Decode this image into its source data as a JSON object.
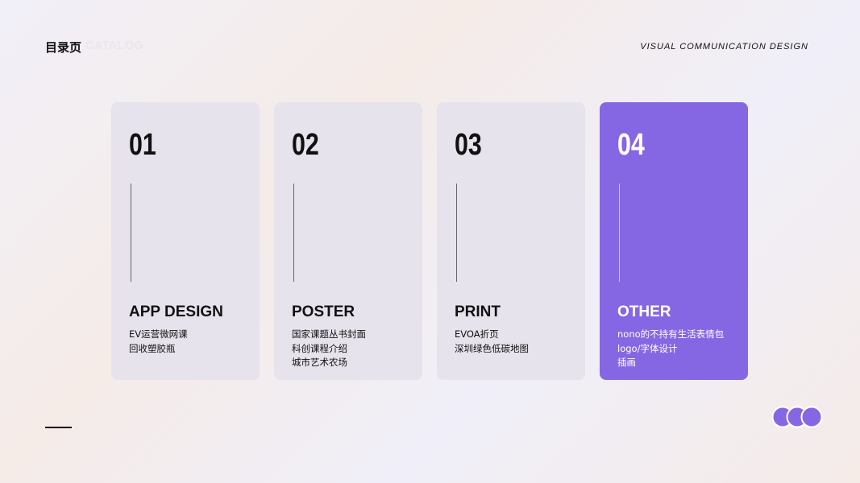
{
  "header": {
    "title": "目录页",
    "subtitle": "CATALOG",
    "tagline": "VISUAL COMMUNICATION DESIGN"
  },
  "cards": [
    {
      "number": "01",
      "title": "APP DESIGN",
      "items": [
        "EV运营微网课",
        "回收塑胶瓶"
      ]
    },
    {
      "number": "02",
      "title": "POSTER",
      "items": [
        "国家课题丛书封面",
        "科创课程介绍",
        "城市艺术农场"
      ]
    },
    {
      "number": "03",
      "title": "PRINT",
      "items": [
        "EVOA折页",
        "深圳绿色低碳地图"
      ]
    },
    {
      "number": "04",
      "title": "OTHER",
      "items": [
        "nono的不持有生活表情包",
        "logo/字体设计",
        "插画"
      ]
    }
  ]
}
